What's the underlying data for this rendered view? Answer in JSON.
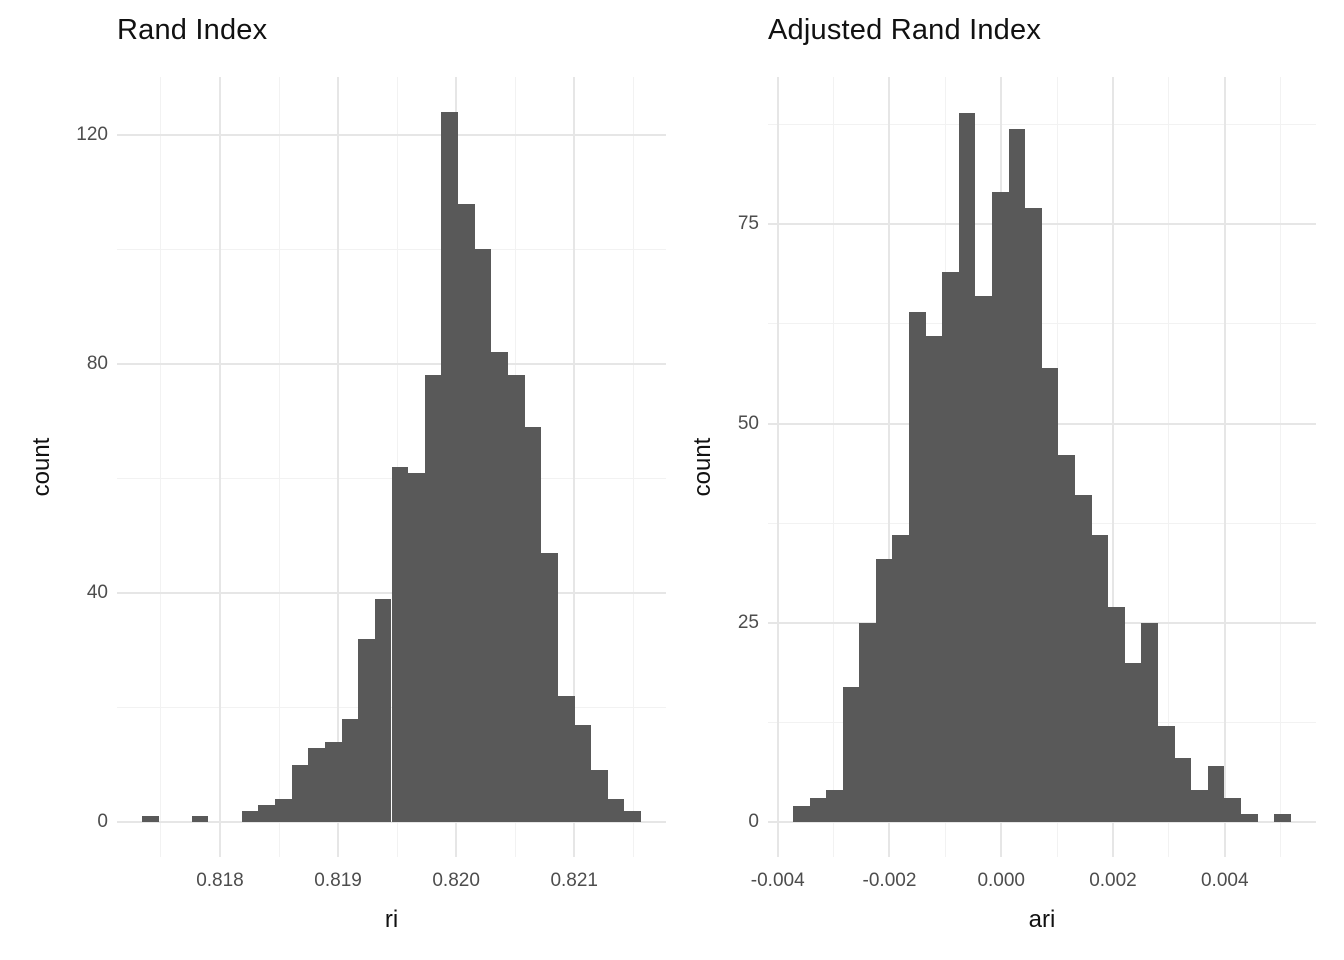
{
  "figure": {
    "background": "#ffffff",
    "bar_color": "#595959",
    "grid_major_color": "#e6e6e6",
    "grid_minor_color": "#f2f2f2",
    "axis_text_color": "#4d4d4d",
    "title_color": "#111111"
  },
  "chart_data": [
    {
      "type": "bar",
      "subtype": "histogram",
      "title": "Rand Index",
      "xlabel": "ri",
      "ylabel": "count",
      "n_total": 1000,
      "bin_start": 0.817339,
      "bin_width": 0.0001409,
      "counts": [
        1,
        0,
        0,
        1,
        0,
        0,
        2,
        3,
        4,
        10,
        13,
        14,
        18,
        32,
        39,
        62,
        61,
        78,
        124,
        108,
        100,
        82,
        78,
        69,
        47,
        22,
        17,
        9,
        4,
        2
      ],
      "x_ticks": [
        {
          "v": 0.818,
          "label": "0.818"
        },
        {
          "v": 0.819,
          "label": "0.819"
        },
        {
          "v": 0.82,
          "label": "0.820"
        },
        {
          "v": 0.821,
          "label": "0.821"
        }
      ],
      "x_minor": [
        0.8175,
        0.8185,
        0.8195,
        0.8205,
        0.8215
      ],
      "y_ticks": [
        {
          "v": 0,
          "label": "0"
        },
        {
          "v": 40,
          "label": "40"
        },
        {
          "v": 80,
          "label": "80"
        },
        {
          "v": 120,
          "label": "120"
        }
      ],
      "y_minor": [
        20,
        60,
        100
      ],
      "x_domain": [
        0.817128,
        0.821777
      ],
      "y_domain": [
        -6.11,
        130.11
      ],
      "ylim_ticks": [
        0,
        120
      ],
      "grid": true,
      "legend": "none"
    },
    {
      "type": "bar",
      "subtype": "histogram",
      "title": "Adjusted Rand Index",
      "xlabel": "ari",
      "ylabel": "count",
      "n_total": 1000,
      "bin_start": -0.003728,
      "bin_width": 0.000297,
      "counts": [
        2,
        3,
        4,
        17,
        25,
        33,
        36,
        64,
        61,
        69,
        89,
        66,
        79,
        87,
        77,
        57,
        46,
        41,
        36,
        27,
        20,
        25,
        12,
        8,
        4,
        7,
        3,
        1,
        0,
        1
      ],
      "x_ticks": [
        {
          "v": -0.004,
          "label": "-0.004"
        },
        {
          "v": -0.002,
          "label": "-0.002"
        },
        {
          "v": 0.0,
          "label": "0.000"
        },
        {
          "v": 0.002,
          "label": "0.002"
        },
        {
          "v": 0.004,
          "label": "0.004"
        }
      ],
      "x_minor": [
        -0.003,
        -0.001,
        0.001,
        0.003,
        0.005
      ],
      "y_ticks": [
        {
          "v": 0,
          "label": "0"
        },
        {
          "v": 25,
          "label": "25"
        },
        {
          "v": 50,
          "label": "50"
        },
        {
          "v": 75,
          "label": "75"
        }
      ],
      "y_minor": [
        12.5,
        37.5,
        62.5,
        87.5
      ],
      "x_domain": [
        -0.004174,
        0.005633
      ],
      "y_domain": [
        -4.39,
        93.48
      ],
      "ylim_ticks": [
        0,
        75
      ],
      "grid": true,
      "legend": "none"
    }
  ]
}
